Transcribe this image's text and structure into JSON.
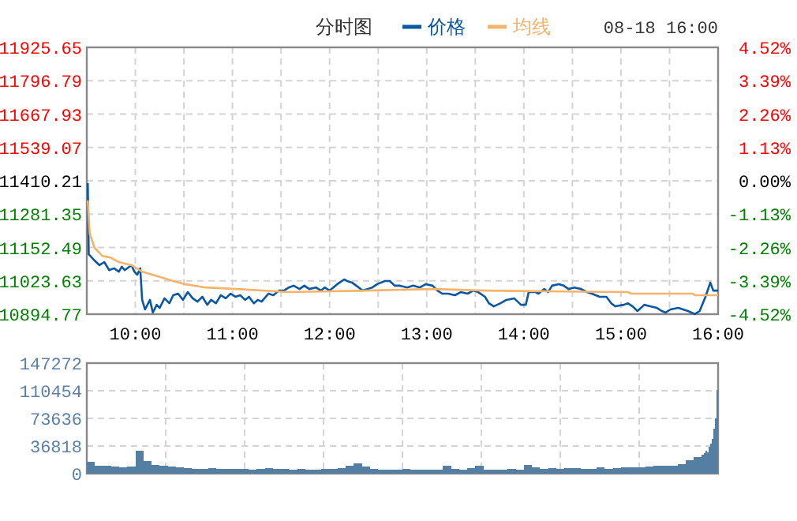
{
  "chart_data": [
    {
      "type": "line",
      "title": "分时图",
      "annotations": [
        "08-18 16:00"
      ],
      "legend": "top",
      "grid": true,
      "xlim": [
        9.5,
        16
      ],
      "xticks": [
        {
          "value": 10,
          "label": "10:00"
        },
        {
          "value": 10.5,
          "label": null
        },
        {
          "value": 11,
          "label": "11:00"
        },
        {
          "value": 11.5,
          "label": null
        },
        {
          "value": 12,
          "label": "12:00"
        },
        {
          "value": 12.5,
          "label": null
        },
        {
          "value": 13,
          "label": "13:00"
        },
        {
          "value": 13.5,
          "label": null
        },
        {
          "value": 14,
          "label": "14:00"
        },
        {
          "value": 14.5,
          "label": null
        },
        {
          "value": 15,
          "label": "15:00"
        },
        {
          "value": 15.5,
          "label": null
        },
        {
          "value": 16,
          "label": "16:00"
        }
      ],
      "ylim": [
        10894.77,
        11925.65
      ],
      "yticks": [
        10894.77,
        11023.63,
        11152.49,
        11281.35,
        11410.21,
        11539.07,
        11667.93,
        11796.79,
        11925.65
      ],
      "y2lim": [
        -4.52,
        4.52
      ],
      "y2ticks": [
        {
          "value": -4.52,
          "label": "-4.52%"
        },
        {
          "value": -3.39,
          "label": "-3.39%"
        },
        {
          "value": -2.26,
          "label": "-2.26%"
        },
        {
          "value": -1.13,
          "label": "-1.13%"
        },
        {
          "value": 0,
          "label": "0.00%"
        },
        {
          "value": 1.13,
          "label": "1.13%"
        },
        {
          "value": 2.26,
          "label": "2.26%"
        },
        {
          "value": 3.39,
          "label": "3.39%"
        },
        {
          "value": 4.52,
          "label": "4.52%"
        }
      ],
      "series": [
        {
          "name": "价格",
          "color": "#0b57a4",
          "x": [
            9.51,
            9.52,
            9.58,
            9.63,
            9.68,
            9.73,
            9.78,
            9.83,
            9.86,
            9.89,
            9.96,
            9.99,
            10.02,
            10.05,
            10.07,
            10.1,
            10.15,
            10.18,
            10.22,
            10.25,
            10.3,
            10.35,
            10.39,
            10.44,
            10.49,
            10.54,
            10.59,
            10.64,
            10.69,
            10.74,
            10.78,
            10.83,
            10.88,
            10.93,
            10.98,
            11.03,
            11.08,
            11.13,
            11.17,
            11.22,
            11.26,
            11.3,
            11.37,
            11.42,
            11.48,
            11.53,
            11.58,
            11.63,
            11.69,
            11.74,
            11.79,
            11.86,
            11.91,
            11.95,
            12.0,
            12.08,
            12.15,
            12.18,
            12.23,
            12.3,
            12.34,
            12.39,
            12.44,
            12.49,
            12.57,
            12.62,
            12.67,
            12.72,
            12.8,
            12.86,
            12.93,
            12.99,
            13.06,
            13.11,
            13.16,
            13.22,
            13.29,
            13.35,
            13.42,
            13.48,
            13.53,
            13.6,
            13.64,
            13.69,
            13.76,
            13.82,
            13.9,
            13.97,
            14.02,
            14.05,
            14.12,
            14.15,
            14.21,
            14.25,
            14.29,
            14.36,
            14.41,
            14.46,
            14.52,
            14.59,
            14.65,
            14.7,
            14.78,
            14.85,
            14.9,
            14.94,
            15.03,
            15.07,
            15.12,
            15.17,
            15.24,
            15.3,
            15.37,
            15.42,
            15.46,
            15.51,
            15.59,
            15.69,
            15.76,
            15.81,
            15.87,
            15.92,
            15.95,
            16.0
          ],
          "values": [
            11401,
            11126,
            11102,
            11084,
            11096,
            11065,
            11072,
            11059,
            11078,
            11065,
            11084,
            11059,
            11047,
            11072,
            10950,
            10913,
            10950,
            10901,
            10931,
            10919,
            10956,
            10937,
            10968,
            10974,
            10950,
            10980,
            10956,
            10943,
            10962,
            10931,
            10950,
            10937,
            10968,
            10956,
            10974,
            10962,
            10968,
            10950,
            10962,
            10937,
            10950,
            10943,
            10974,
            10968,
            10986,
            10986,
            10998,
            11005,
            10992,
            11005,
            10992,
            10998,
            10986,
            10998,
            10986,
            11011,
            11029,
            11023,
            11017,
            10998,
            10986,
            10992,
            10998,
            11011,
            11023,
            11023,
            11005,
            11005,
            10998,
            11005,
            10998,
            11011,
            11005,
            10986,
            10974,
            10974,
            10968,
            10980,
            10974,
            10986,
            10980,
            10962,
            10937,
            10925,
            10937,
            10950,
            10956,
            10931,
            10931,
            10980,
            10980,
            10974,
            10992,
            10980,
            11005,
            11011,
            11005,
            10992,
            10998,
            10992,
            10980,
            10974,
            10962,
            10962,
            10937,
            10925,
            10931,
            10937,
            10925,
            10907,
            10931,
            10925,
            10919,
            10907,
            10901,
            10913,
            10919,
            10907,
            10895,
            10907,
            10962,
            11017,
            10986,
            10986
          ]
        },
        {
          "name": "均线",
          "color": "#f5b36b",
          "x": [
            9.51,
            9.53,
            9.58,
            9.66,
            9.74,
            9.83,
            9.96,
            10.07,
            10.23,
            10.39,
            10.51,
            10.72,
            11.04,
            11.58,
            12.39,
            13.08,
            13.61,
            15.07,
            15.11,
            15.74,
            15.76,
            16.0
          ],
          "values": [
            11334,
            11206,
            11151,
            11120,
            11114,
            11096,
            11084,
            11059,
            11041,
            11023,
            11011,
            10998,
            10992,
            10980,
            10986,
            10992,
            10986,
            10980,
            10974,
            10974,
            10968,
            10968
          ]
        }
      ]
    },
    {
      "type": "bar",
      "grid": true,
      "tick_labels": "y",
      "xlim": [
        9.5,
        16
      ],
      "xticks": [
        {
          "value": 10.3125,
          "label": null
        },
        {
          "value": 11.125,
          "label": null
        },
        {
          "value": 11.9375,
          "label": null
        },
        {
          "value": 12.75,
          "label": null
        },
        {
          "value": 13.5625,
          "label": null
        },
        {
          "value": 14.375,
          "label": null
        },
        {
          "value": 15.1875,
          "label": null
        }
      ],
      "ylim": [
        0,
        147272
      ],
      "yticks": [
        0,
        36818,
        73636,
        110454,
        147272
      ],
      "series": [
        {
          "color": "#557ea3",
          "x": [
            9.5,
            9.583,
            9.667,
            9.75,
            9.833,
            9.917,
            10,
            10.083,
            10.167,
            10.25,
            10.333,
            10.417,
            10.5,
            10.583,
            10.667,
            10.75,
            10.833,
            10.917,
            11,
            11.083,
            11.167,
            11.25,
            11.333,
            11.417,
            11.5,
            11.583,
            11.667,
            11.75,
            11.833,
            11.917,
            12,
            12.083,
            12.167,
            12.25,
            12.333,
            12.417,
            12.5,
            12.583,
            12.667,
            12.75,
            12.833,
            12.917,
            13,
            13.083,
            13.167,
            13.25,
            13.333,
            13.417,
            13.5,
            13.583,
            13.667,
            13.75,
            13.833,
            13.917,
            14,
            14.083,
            14.167,
            14.25,
            14.333,
            14.417,
            14.5,
            14.583,
            14.667,
            14.75,
            14.833,
            14.917,
            15,
            15.083,
            15.167,
            15.25,
            15.333,
            15.417,
            15.5,
            15.583,
            15.667,
            15.75,
            15.833,
            15.85,
            15.867,
            15.883,
            15.9,
            15.917,
            15.933,
            15.95,
            15.967,
            15.983
          ],
          "values": [
            16000,
            11000,
            10000,
            9000,
            8000,
            9000,
            30000,
            17000,
            12000,
            10000,
            9000,
            8000,
            7000,
            6000,
            6000,
            7000,
            6000,
            6000,
            6000,
            6000,
            5000,
            6000,
            7000,
            6000,
            6000,
            5000,
            6000,
            5000,
            5000,
            6000,
            6000,
            7000,
            10000,
            14000,
            9000,
            6000,
            5000,
            5000,
            5000,
            6000,
            5000,
            5000,
            5000,
            5000,
            10000,
            6000,
            5000,
            7000,
            10000,
            5000,
            5000,
            5000,
            6000,
            5000,
            12000,
            8000,
            6000,
            7000,
            6000,
            7000,
            7000,
            6000,
            6000,
            8000,
            6000,
            7000,
            8000,
            8000,
            8000,
            9000,
            10000,
            10000,
            11000,
            13000,
            18000,
            22000,
            25000,
            27000,
            30000,
            28000,
            36000,
            40000,
            46000,
            60000,
            74000,
            111000
          ]
        }
      ]
    }
  ]
}
